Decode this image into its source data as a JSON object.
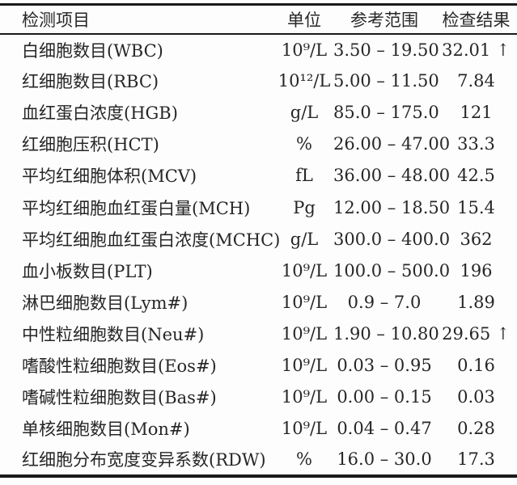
{
  "report": {
    "colors": {
      "text": "#262626",
      "border": "#1a1a1a",
      "background": "#fdfdfd"
    },
    "table": {
      "headers": {
        "item": "检测项目",
        "unit": "单位",
        "range": "参考范围",
        "result": "检查结果"
      },
      "rows": [
        {
          "item": "白细胞数目(WBC)",
          "unit": "10⁹/L",
          "range": "3.50 – 19.50",
          "result": "32.01",
          "flag": "↑"
        },
        {
          "item": "红细胞数目(RBC)",
          "unit": "10¹²/L",
          "range": "5.00 – 11.50",
          "result": "7.84",
          "flag": ""
        },
        {
          "item": "血红蛋白浓度(HGB)",
          "unit": "g/L",
          "range": "85.0 – 175.0",
          "result": "121",
          "flag": ""
        },
        {
          "item": "红细胞压积(HCT)",
          "unit": "%",
          "range": "26.00 – 47.00",
          "result": "33.3",
          "flag": ""
        },
        {
          "item": "平均红细胞体积(MCV)",
          "unit": "fL",
          "range": "36.00 – 48.00",
          "result": "42.5",
          "flag": ""
        },
        {
          "item": "平均红细胞血红蛋白量(MCH)",
          "unit": "Pg",
          "range": "12.00 – 18.50",
          "result": "15.4",
          "flag": ""
        },
        {
          "item": "平均红细胞血红蛋白浓度(MCHC)",
          "unit": "g/L",
          "range": "300.0 – 400.0",
          "result": "362",
          "flag": ""
        },
        {
          "item": "血小板数目(PLT)",
          "unit": "10⁹/L",
          "range": "100.0 – 500.0",
          "result": "196",
          "flag": ""
        },
        {
          "item": "淋巴细胞数目(Lym#)",
          "unit": "10⁹/L",
          "range": "0.9 – 7.0",
          "result": "1.89",
          "flag": ""
        },
        {
          "item": "中性粒细胞数目(Neu#)",
          "unit": "10⁹/L",
          "range": "1.90 – 10.80",
          "result": "29.65",
          "flag": "↑"
        },
        {
          "item": "嗜酸性粒细胞数目(Eos#)",
          "unit": "10⁹/L",
          "range": "0.03 – 0.95",
          "result": "0.16",
          "flag": ""
        },
        {
          "item": "嗜碱性粒细胞数目(Bas#)",
          "unit": "10⁹/L",
          "range": "0.00 – 0.15",
          "result": "0.03",
          "flag": ""
        },
        {
          "item": "单核细胞数目(Mon#)",
          "unit": "10⁹/L",
          "range": "0.04 – 0.47",
          "result": "0.28",
          "flag": ""
        },
        {
          "item": "红细胞分布宽度变异系数(RDW)",
          "unit": "%",
          "range": "16.0 – 30.0",
          "result": "17.3",
          "flag": ""
        }
      ]
    }
  }
}
